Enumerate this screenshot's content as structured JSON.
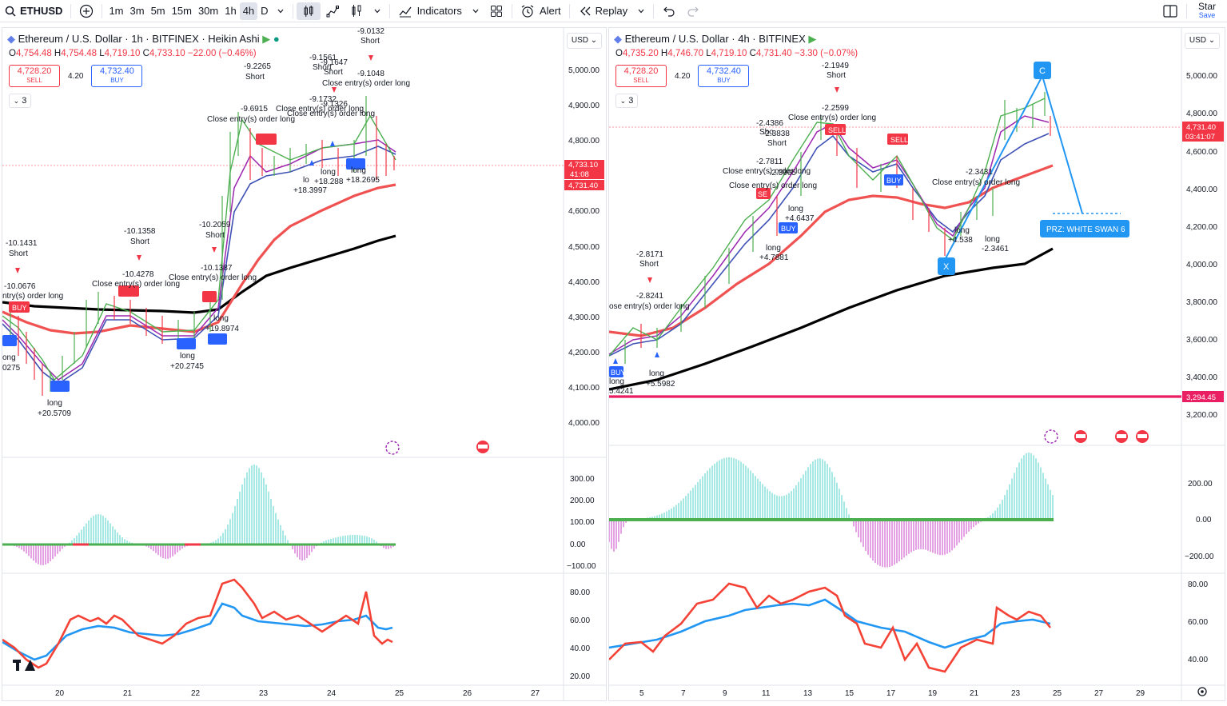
{
  "toolbar": {
    "symbol": "ETHUSD",
    "intervals": [
      "1m",
      "3m",
      "5m",
      "15m",
      "30m",
      "1h",
      "4h",
      "D"
    ],
    "active_interval": "4h",
    "indicators_label": "Indicators",
    "alert_label": "Alert",
    "replay_label": "Replay",
    "star_label": "Star",
    "save_label": "Save"
  },
  "left_chart": {
    "title": "Ethereum / U.S. Dollar · 1h · BITFINEX · Heikin Ashi",
    "ohlc": {
      "o": "4,754.48",
      "h": "4,754.48",
      "l": "4,719.10",
      "c": "4,733.10",
      "change": "−22.00 (−0.46%)"
    },
    "sell_price": "4,728.20",
    "sell_label": "SELL",
    "spread": "4.20",
    "buy_price": "4,732.40",
    "buy_label": "BUY",
    "indicator_count": "3",
    "currency": "USD",
    "price_ticks": [
      "5,000.00",
      "4,900.00",
      "4,800.00",
      "4,700.00",
      "4,600.00",
      "4,500.00",
      "4,400.00",
      "4,300.00",
      "4,200.00",
      "4,100.00",
      "4,000.00"
    ],
    "last_price_tag": "4,733.10",
    "countdown_tag": "41:08",
    "second_tag": "4,731.40",
    "macd_ticks": [
      "300.00",
      "200.00",
      "100.00",
      "0.00",
      "−100.00"
    ],
    "rsi_ticks": [
      "80.00",
      "60.00",
      "40.00",
      "20.00"
    ],
    "date_ticks": [
      "20",
      "21",
      "22",
      "23",
      "24",
      "25",
      "26",
      "27"
    ],
    "annotations": [
      "-10.1431",
      "Short",
      "-10.0676",
      "ntry(s) order long",
      "-10.1358",
      "Short",
      "-10.4278",
      "Close entry(s) order long",
      "-10.2059",
      "Short",
      "-10.1387",
      "Close entry(s) order long",
      "-9.2265",
      "Short",
      "-9.6915",
      "Close entry(s) order long",
      "-9.1561",
      "Short",
      "-9.1647",
      "Short",
      "-9.0132",
      "Short",
      "-9.1048",
      "Close entry(s) order long",
      "-9.1732",
      "-9.1326",
      "Close entry(s) order long",
      "Close entry(s) order long",
      "long",
      "+18.2695",
      "long",
      "+18.288",
      "lo",
      "+18.3997",
      "long",
      "+19.8974",
      "long",
      "+20.2745",
      "long",
      "+20.5709",
      "ong",
      "0275",
      "SELL",
      "SELL",
      "SELL",
      "SE",
      "BUY",
      "BUY",
      "BUY",
      "BUY",
      "BUY"
    ]
  },
  "right_chart": {
    "title": "Ethereum / U.S. Dollar · 4h · BITFINEX",
    "ohlc": {
      "o": "4,735.20",
      "h": "4,746.70",
      "l": "4,719.10",
      "c": "4,731.40",
      "change": "−3.30 (−0.07%)"
    },
    "sell_price": "4,728.20",
    "sell_label": "SELL",
    "spread": "4.20",
    "buy_price": "4,732.40",
    "buy_label": "BUY",
    "indicator_count": "3",
    "currency": "USD",
    "price_ticks": [
      "5,000.00",
      "4,800.00",
      "4,600.00",
      "4,400.00",
      "4,200.00",
      "4,000.00",
      "3,800.00",
      "3,600.00",
      "3,400.00",
      "3,200.00"
    ],
    "last_price_tag": "4,731.40",
    "countdown_tag": "03:41:07",
    "support_tag": "3,294.45",
    "macd_ticks": [
      "200.00",
      "0.00",
      "−200.00"
    ],
    "rsi_ticks": [
      "80.00",
      "60.00",
      "40.00"
    ],
    "date_ticks": [
      "5",
      "7",
      "9",
      "11",
      "13",
      "15",
      "17",
      "19",
      "21",
      "23",
      "25",
      "27",
      "29"
    ],
    "pattern_labels": {
      "c": "C",
      "x": "X",
      "prz": "PRZ: WHITE SWAN 6"
    },
    "annotations": [
      "-2.8171",
      "Short",
      "-2.8241",
      "ose entry(s) order long",
      "long",
      "+5.5982",
      "long",
      "5.4241",
      "-2.1949",
      "Short",
      "-2.2599",
      "Close entry(s) order long",
      "-2.4386",
      "Sho",
      "-2.3838",
      "Short",
      "-2.7811",
      "Close entry(s) order long",
      "-2.3965",
      "Close entry(s) order long",
      "long",
      "+4.6437",
      "long",
      "+4.7881",
      "-2.3431",
      "Close entry(s) order long",
      "long",
      "+4.538",
      "long",
      "-2.3461",
      "SELL",
      "SELL",
      "SE",
      "BUY",
      "BUY",
      "BUY"
    ]
  },
  "colors": {
    "sell": "#f23645",
    "buy": "#2962ff",
    "ma_red": "#f05252",
    "ma_black": "#000000",
    "support_line": "#e91e63",
    "pattern_blue": "#2196f3",
    "rsi_blue": "#2196f3",
    "rsi_red": "#f44336",
    "macd_pos": "#7fded8",
    "macd_neg": "#d87ad8",
    "macd_signal": "#4caf50"
  }
}
